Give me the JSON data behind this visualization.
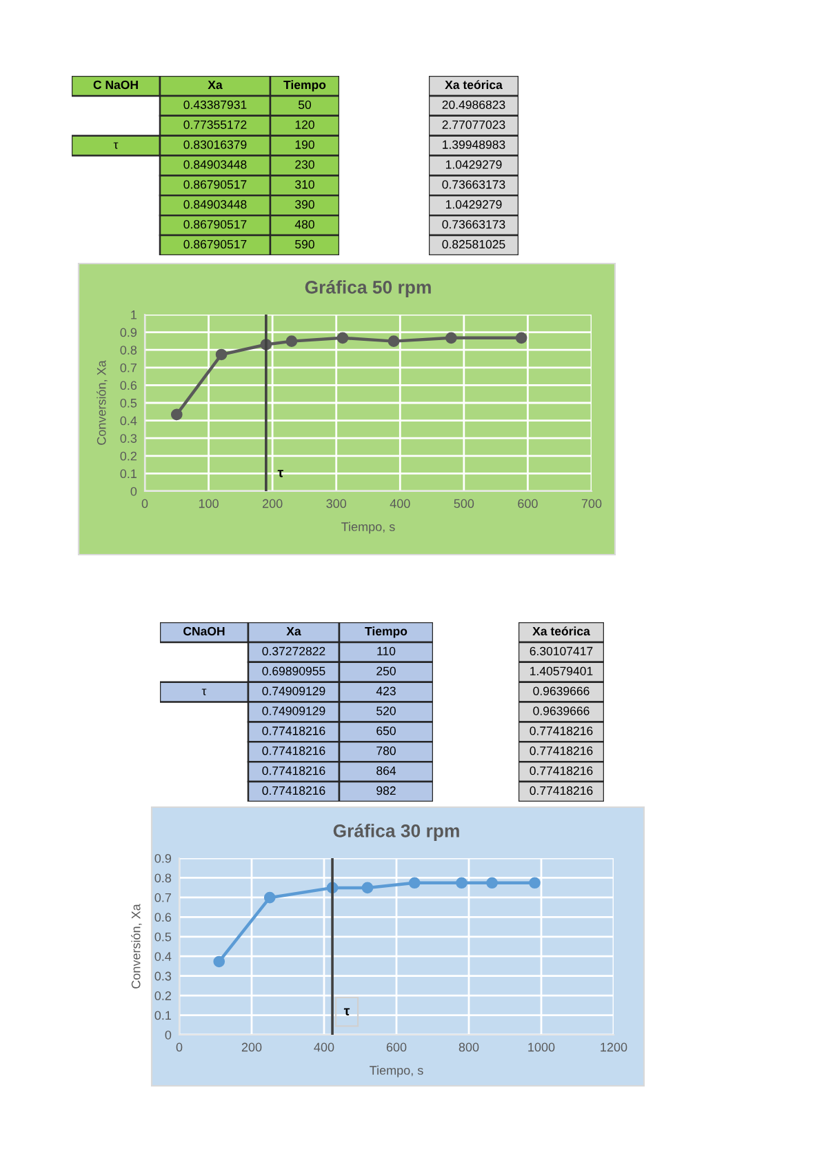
{
  "chart_data": [
    {
      "type": "other",
      "annotations": [
        "C NaOH",
        "Xa",
        "Tiempo",
        "0.43387931",
        "50",
        "0.77355172",
        "120",
        "τ",
        "0.83016379",
        "190",
        "0.84903448",
        "230",
        "0.86790517",
        "310",
        "0.84903448",
        "390",
        "0.86790517",
        "480",
        "0.86790517",
        "590"
      ],
      "color": "#92d050"
    },
    {
      "type": "other",
      "annotations": [
        "Xa teórica",
        "20.4986823",
        "2.77077023",
        "1.39948983",
        "1.0429279",
        "0.73663173",
        "1.0429279",
        "0.73663173",
        "0.82581025"
      ],
      "color": "#d9d9d9"
    },
    {
      "type": "line",
      "title": "Gráfica 50 rpm",
      "xlabel": "Tiempo, s",
      "ylabel": "Conversión, Xa",
      "x": [
        50,
        120,
        190,
        230,
        310,
        390,
        480,
        590
      ],
      "values": [
        0.43387931,
        0.77355172,
        0.83016379,
        0.84903448,
        0.86790517,
        0.84903448,
        0.86790517,
        0.86790517
      ],
      "color": "#595959",
      "marker": "circle",
      "xlim": [
        0,
        700
      ],
      "xticks": [
        0,
        100,
        200,
        300,
        400,
        500,
        600,
        700
      ],
      "ylim": [
        0,
        1
      ],
      "yticks": [
        0,
        0.1,
        0.2,
        0.3,
        0.4,
        0.5,
        0.6,
        0.7,
        0.8,
        0.9,
        1
      ],
      "grid": true,
      "ref_lines": [
        {
          "axis": "x",
          "value": 190,
          "label": "τ",
          "color": "#404040"
        }
      ]
    },
    {
      "type": "other",
      "annotations": [
        "CNaOH",
        "Xa",
        "Tiempo",
        "0.37272822",
        "110",
        "0.69890955",
        "250",
        "τ",
        "0.74909129",
        "423",
        "0.74909129",
        "520",
        "0.77418216",
        "650",
        "0.77418216",
        "780",
        "0.77418216",
        "864",
        "0.77418216",
        "982"
      ],
      "color": "#b4c7e7"
    },
    {
      "type": "other",
      "annotations": [
        "Xa teórica",
        "6.30107417",
        "1.40579401",
        "0.9639666",
        "0.9639666",
        "0.77418216",
        "0.77418216",
        "0.77418216",
        "0.77418216"
      ],
      "color": "#d9d9d9"
    },
    {
      "type": "line",
      "title": "Gráfica 30 rpm",
      "xlabel": "Tiempo, s",
      "ylabel": "Conversión, Xa",
      "x": [
        110,
        250,
        423,
        520,
        650,
        780,
        864,
        982
      ],
      "values": [
        0.37272822,
        0.69890955,
        0.74909129,
        0.74909129,
        0.77418216,
        0.77418216,
        0.77418216,
        0.77418216
      ],
      "color": "#5b9bd5",
      "marker": "circle",
      "xlim": [
        0,
        1200
      ],
      "xticks": [
        0,
        200,
        400,
        600,
        800,
        1000,
        1200
      ],
      "ylim": [
        0,
        0.9
      ],
      "yticks": [
        0,
        0.1,
        0.2,
        0.3,
        0.4,
        0.5,
        0.6,
        0.7,
        0.8,
        0.9
      ],
      "grid": true,
      "ref_lines": [
        {
          "axis": "x",
          "value": 423,
          "label": "τ",
          "color": "#404040"
        }
      ]
    }
  ]
}
